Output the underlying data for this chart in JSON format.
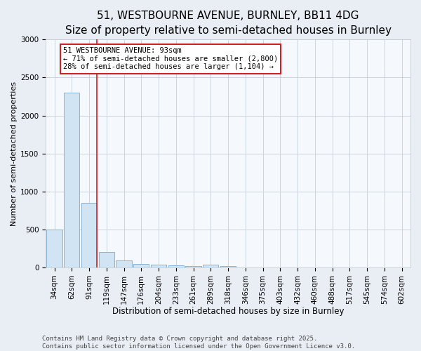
{
  "title": "51, WESTBOURNE AVENUE, BURNLEY, BB11 4DG",
  "subtitle": "Size of property relative to semi-detached houses in Burnley",
  "xlabel": "Distribution of semi-detached houses by size in Burnley",
  "ylabel": "Number of semi-detached properties",
  "categories": [
    "34sqm",
    "62sqm",
    "91sqm",
    "119sqm",
    "147sqm",
    "176sqm",
    "204sqm",
    "233sqm",
    "261sqm",
    "289sqm",
    "318sqm",
    "346sqm",
    "375sqm",
    "403sqm",
    "432sqm",
    "460sqm",
    "488sqm",
    "517sqm",
    "545sqm",
    "574sqm",
    "602sqm"
  ],
  "values": [
    500,
    2300,
    850,
    200,
    90,
    50,
    40,
    25,
    15,
    40,
    20,
    0,
    0,
    0,
    0,
    0,
    0,
    0,
    0,
    0,
    0
  ],
  "bar_color": "#d0e4f4",
  "bar_edge_color": "#7aaacf",
  "red_line_color": "#cc2222",
  "annotation_line1": "51 WESTBOURNE AVENUE: 93sqm",
  "annotation_line2": "← 71% of semi-detached houses are smaller (2,800)",
  "annotation_line3": "28% of semi-detached houses are larger (1,104) →",
  "annotation_box_color": "#ffffff",
  "annotation_border_color": "#cc2222",
  "ylim": [
    0,
    3000
  ],
  "yticks": [
    0,
    500,
    1000,
    1500,
    2000,
    2500,
    3000
  ],
  "footer": "Contains HM Land Registry data © Crown copyright and database right 2025.\nContains public sector information licensed under the Open Government Licence v3.0.",
  "title_fontsize": 11,
  "subtitle_fontsize": 9.5,
  "xlabel_fontsize": 8.5,
  "ylabel_fontsize": 8,
  "tick_fontsize": 7.5,
  "annotation_fontsize": 7.5,
  "footer_fontsize": 6.5,
  "bg_color": "#e8eef4",
  "plot_bg_color": "#f5f8fc",
  "grid_color": "#c5cfd8",
  "red_line_bar_index": 2
}
